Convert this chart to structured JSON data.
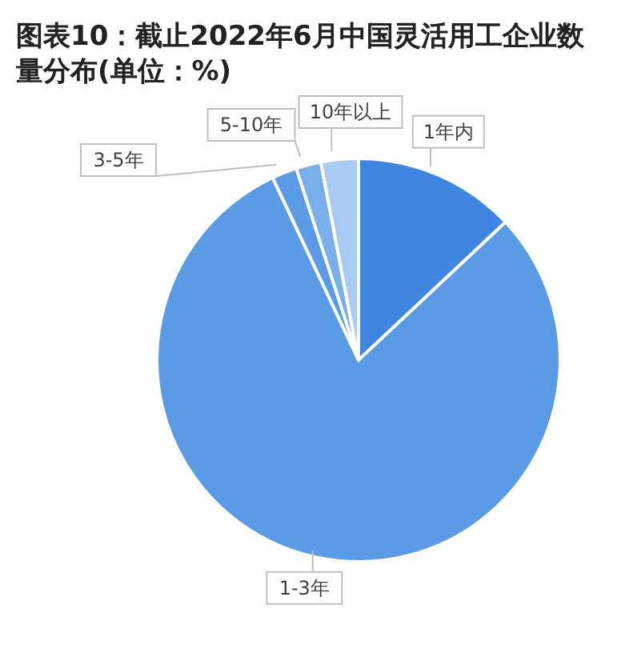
{
  "chart_data": {
    "type": "pie",
    "title": "图表10：截止2022年6月中国灵活用工企业数量分布(单位：%)",
    "categories": [
      "1年内",
      "1-3年",
      "3-5年",
      "5-10年",
      "10年以上"
    ],
    "values": [
      13,
      80,
      2,
      2,
      3
    ],
    "colors": [
      "#3f86e0",
      "#5b9be6",
      "#5b9be6",
      "#7aaeea",
      "#a9cbf2"
    ],
    "legend": false
  }
}
